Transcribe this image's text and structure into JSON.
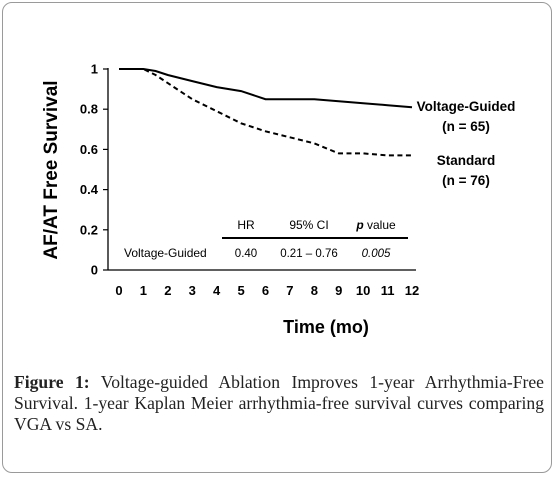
{
  "chart_data": {
    "type": "line",
    "title": "",
    "xlabel": "Time (mo)",
    "ylabel": "AF/AT Free Survival",
    "xlim": [
      0,
      12
    ],
    "ylim": [
      0,
      1
    ],
    "x_ticks": [
      "0",
      "1",
      "2",
      "3",
      "4",
      "5",
      "6",
      "7",
      "8",
      "9",
      "10",
      "11",
      "12"
    ],
    "y_ticks": [
      "0",
      "0.2",
      "0.4",
      "0.6",
      "0.8",
      "1"
    ],
    "grid": false,
    "series": [
      {
        "name": "Voltage-Guided",
        "label_line1": "Voltage-Guided",
        "label_line2": "(n = 65)",
        "style": "solid",
        "color": "#000000",
        "x": [
          0,
          1,
          1.5,
          2,
          3,
          4,
          5,
          6,
          7,
          8,
          9,
          10,
          11,
          12
        ],
        "y": [
          1.0,
          1.0,
          0.99,
          0.97,
          0.94,
          0.91,
          0.89,
          0.85,
          0.85,
          0.85,
          0.84,
          0.83,
          0.82,
          0.81
        ]
      },
      {
        "name": "Standard",
        "label_line1": "Standard",
        "label_line2": "(n = 76)",
        "style": "dashed",
        "color": "#000000",
        "x": [
          0,
          1,
          1.5,
          2,
          3,
          4,
          5,
          6,
          7,
          8,
          9,
          10,
          11,
          12
        ],
        "y": [
          1.0,
          1.0,
          0.97,
          0.93,
          0.85,
          0.79,
          0.73,
          0.69,
          0.66,
          0.63,
          0.58,
          0.58,
          0.57,
          0.57
        ]
      }
    ],
    "hazard_table": {
      "headers": [
        "HR",
        "95% CI",
        "p value"
      ],
      "row_label": "Voltage-Guided",
      "values": [
        "0.40",
        "0.21 – 0.76",
        "0.005"
      ]
    }
  },
  "caption": {
    "label": "Figure 1:",
    "text": " Voltage-guided Ablation Improves 1-year Arrhythmia-Free Survival. 1-year Kaplan Meier arrhythmia-free survival curves comparing VGA vs SA."
  }
}
